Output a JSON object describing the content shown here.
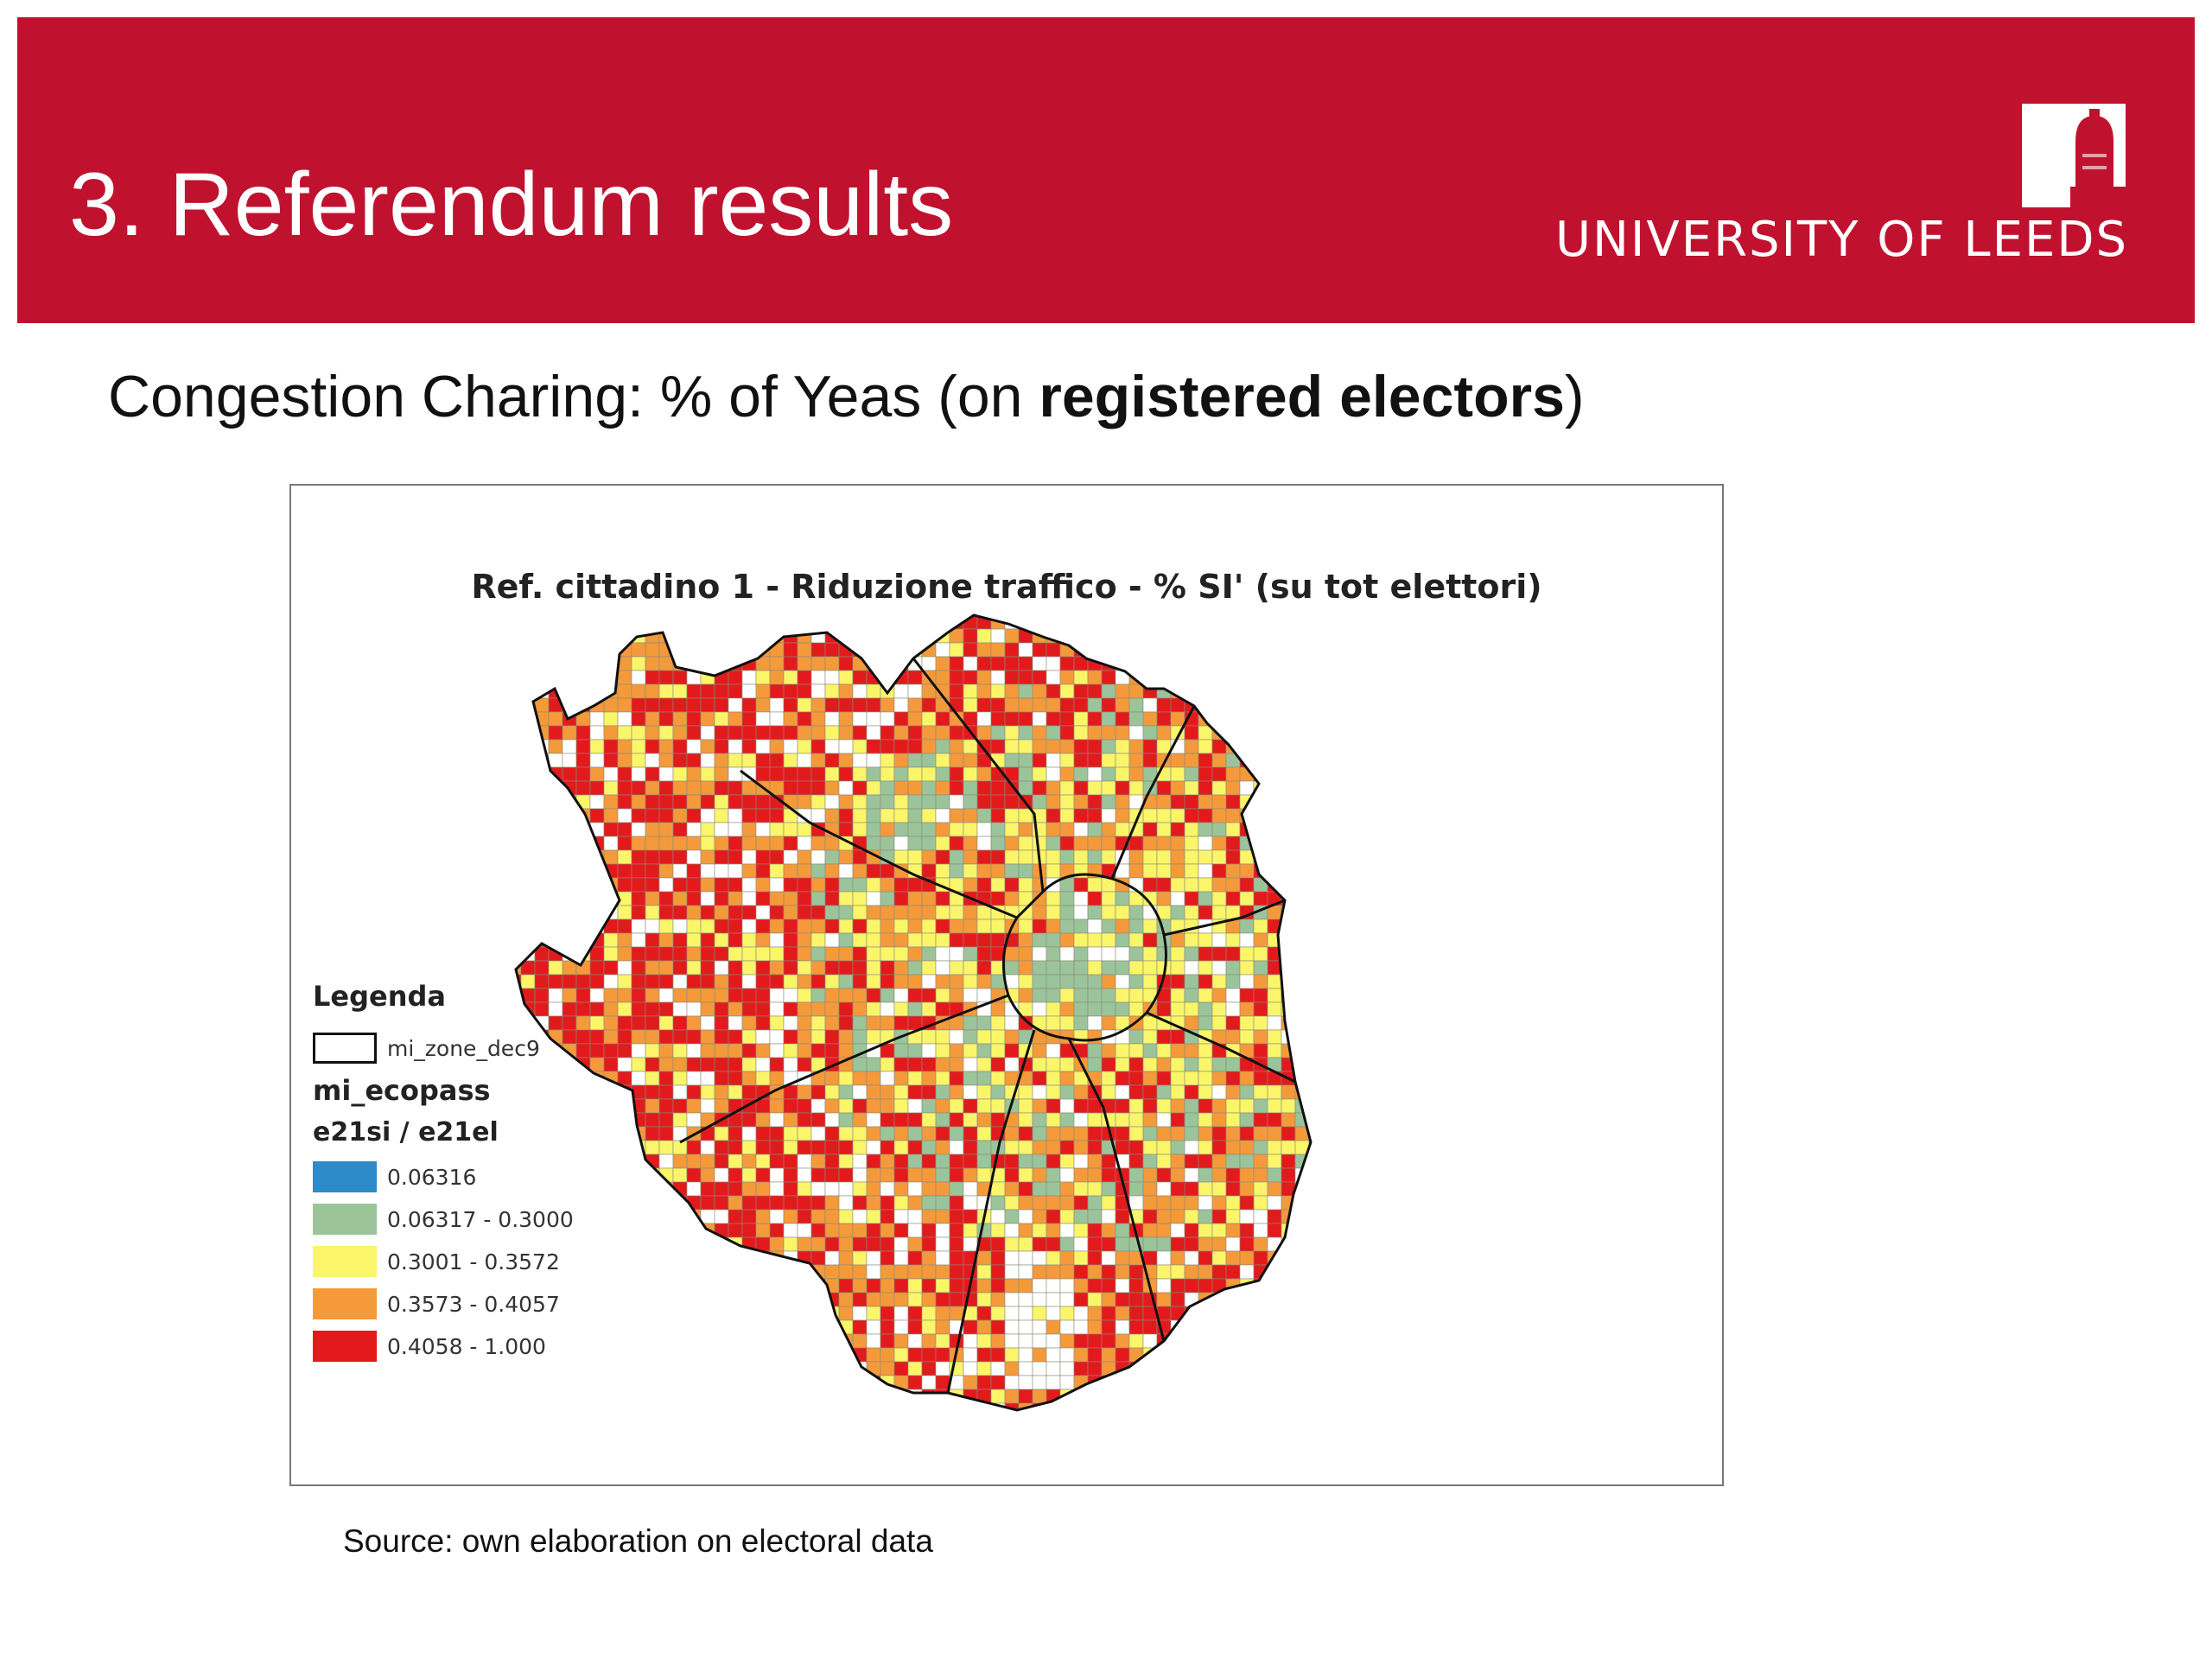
{
  "header": {
    "title": "3. Referendum results",
    "logo_text": "UNIVERSITY OF LEEDS",
    "bg_color": "#c0122f"
  },
  "subtitle": {
    "prefix": "Congestion Charing: % of Yeas (on ",
    "bold": "registered electors",
    "suffix": ")"
  },
  "map": {
    "title": "Ref. cittadino 1 - Riduzione traffico - % SI' (su tot elettori)",
    "legend": {
      "heading": "Legenda",
      "boundary_layer": "mi_zone_dec9",
      "data_layer": "mi_ecopass",
      "field": "e21si / e21el",
      "classes": [
        {
          "label": "0.06316",
          "color": "#2e8bc9"
        },
        {
          "label": "0.06317 - 0.3000",
          "color": "#9bc49a"
        },
        {
          "label": "0.3001 - 0.3572",
          "color": "#fbf56a"
        },
        {
          "label": "0.3573 - 0.4057",
          "color": "#f59a3a"
        },
        {
          "label": "0.4058 - 1.000",
          "color": "#e31a1c"
        }
      ]
    }
  },
  "source": "Source: own elaboration on electoral data"
}
